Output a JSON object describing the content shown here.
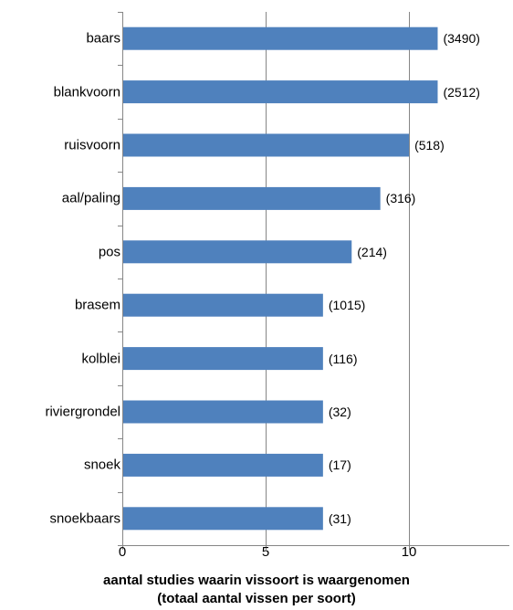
{
  "chart_data": {
    "type": "bar",
    "orientation": "horizontal",
    "categories": [
      "baars",
      "blankvoorn",
      "ruisvoorn",
      "aal/paling",
      "pos",
      "brasem",
      "kolblei",
      "riviergrondel",
      "snoek",
      "snoekbaars"
    ],
    "values": [
      11,
      11,
      10,
      9,
      8,
      7,
      7,
      7,
      7,
      7
    ],
    "data_labels": [
      "(3490)",
      "(2512)",
      "(518)",
      "(316)",
      "(214)",
      "(1015)",
      "(116)",
      "(32)",
      "(17)",
      "(31)"
    ],
    "xlabel_line1": "aantal studies waarin vissoort is waargenomen",
    "xlabel_line2": "(totaal aantal vissen per soort)",
    "xlim": [
      0,
      13.5
    ],
    "xticks": [
      0,
      5,
      10
    ],
    "xtick_labels": [
      "0",
      "5",
      "10"
    ],
    "grid": "vertical major gridlines",
    "bar_color": "#4F81BD",
    "grid_color": "#868686"
  }
}
